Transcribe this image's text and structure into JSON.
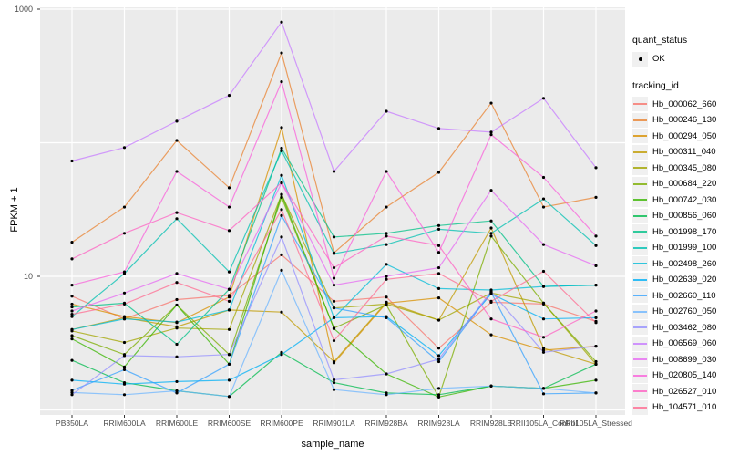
{
  "figure": {
    "background": "#FFFFFF",
    "panel_background": "#EBEBEB",
    "grid_color": "#FFFFFF",
    "tick_color": "#333333",
    "point_color": "#000000"
  },
  "axes": {
    "y_title": "FPKM + 1",
    "x_title": "sample_name",
    "y_tick_labels": [
      "1000",
      "10"
    ]
  },
  "legend": {
    "quant_status_title": "quant_status",
    "ok_label": "OK",
    "tracking_id_title": "tracking_id"
  },
  "chart_data": {
    "type": "line",
    "title": "",
    "xlabel": "sample_name",
    "ylabel": "FPKM + 1",
    "y_scale": "log10",
    "ylim": [
      0.92,
      1030
    ],
    "y_gridline_values": [
      1,
      10,
      100,
      1000
    ],
    "y_labeled_ticks": [
      1000,
      10
    ],
    "grid": "on",
    "legend_position": "right",
    "point_marker": "black dot on every vertex (quant_status = OK)",
    "categories": [
      "PB350LA",
      "RRIM600LA",
      "RRIM600LE",
      "RRIM600SE",
      "RRIM600PE",
      "RRIM901LA",
      "RRIM928BA",
      "RRIM928LA",
      "RRIM928LE",
      "RRII105LA_Control",
      "RRII105LA_Stressed"
    ],
    "series": [
      {
        "name": "Hb_000062_660",
        "color": "#F8766D",
        "values": [
          7.1,
          4.8,
          6.7,
          7.2,
          14.5,
          6.5,
          7.0,
          2.9,
          6.4,
          6.2,
          4.6
        ]
      },
      {
        "name": "Hb_000246_130",
        "color": "#EA8331",
        "values": [
          18,
          33,
          104,
          46,
          470,
          15,
          33,
          60,
          198,
          33,
          39
        ]
      },
      {
        "name": "Hb_000294_050",
        "color": "#D89000",
        "values": [
          6.2,
          5.0,
          4.5,
          7.0,
          130,
          2.25,
          6.3,
          6.9,
          3.65,
          2.8,
          3.0
        ]
      },
      {
        "name": "Hb_000311_040",
        "color": "#C09B00",
        "values": [
          4.0,
          4.9,
          4.2,
          5.6,
          5.4,
          2.3,
          6.4,
          4.7,
          23,
          2.9,
          2.2
        ]
      },
      {
        "name": "Hb_000345_080",
        "color": "#A3A500",
        "values": [
          3.9,
          3.2,
          4.1,
          4.0,
          41,
          5.8,
          6.2,
          4.7,
          7.5,
          6.3,
          2.2
        ]
      },
      {
        "name": "Hb_000684_220",
        "color": "#7CAE00",
        "values": [
          3.6,
          2.6,
          6.1,
          2.6,
          39,
          4.1,
          6.1,
          1.25,
          20,
          6.3,
          2.3
        ]
      },
      {
        "name": "Hb_000742_030",
        "color": "#39B600",
        "values": [
          3.4,
          2.1,
          6.1,
          2.2,
          41,
          4.06,
          1.86,
          1.25,
          1.51,
          1.45,
          1.67
        ]
      },
      {
        "name": "Hb_000856_060",
        "color": "#00BB4E",
        "values": [
          2.35,
          1.6,
          1.39,
          1.26,
          2.7,
          1.6,
          1.34,
          1.3,
          1.51,
          1.45,
          2.2
        ]
      },
      {
        "name": "Hb_001998_170",
        "color": "#00C087",
        "values": [
          5.9,
          6.3,
          3.1,
          8.0,
          91,
          19.7,
          21,
          24,
          26,
          8.4,
          8.6
        ]
      },
      {
        "name": "Hb_001999_100",
        "color": "#00C0B2",
        "values": [
          5.0,
          10.5,
          27,
          10.8,
          87,
          14.8,
          17.3,
          22.5,
          21,
          38,
          17
        ]
      },
      {
        "name": "Hb_002498_260",
        "color": "#00BCD8",
        "values": [
          4.0,
          4.8,
          4.55,
          5.6,
          57,
          4.9,
          12.3,
          8.1,
          7.9,
          8.4,
          8.6
        ]
      },
      {
        "name": "Hb_002639_020",
        "color": "#00B0F6",
        "values": [
          1.67,
          1.56,
          1.63,
          1.67,
          2.6,
          4.9,
          5.0,
          2.55,
          7.4,
          4.8,
          4.9
        ]
      },
      {
        "name": "Hb_002660_110",
        "color": "#35A2FF",
        "values": [
          1.4,
          2.0,
          1.34,
          2.2,
          28.5,
          5.8,
          4.9,
          2.3,
          7.6,
          1.32,
          1.34
        ]
      },
      {
        "name": "Hb_002760_050",
        "color": "#6EB6FF",
        "values": [
          1.35,
          1.3,
          1.39,
          1.26,
          11.1,
          1.42,
          1.3,
          1.45,
          1.51,
          1.45,
          1.34
        ]
      },
      {
        "name": "Hb_003462_080",
        "color": "#9590FF",
        "values": [
          1.3,
          2.55,
          2.5,
          2.6,
          19.7,
          1.68,
          1.86,
          2.4,
          7.7,
          2.7,
          3.0
        ]
      },
      {
        "name": "Hb_006569_060",
        "color": "#C77CFF",
        "values": [
          73,
          92,
          145,
          226,
          800,
          61,
          172,
          128,
          120,
          215,
          65
        ]
      },
      {
        "name": "Hb_008699_030",
        "color": "#E76BF3",
        "values": [
          5.5,
          7.5,
          10.5,
          8.0,
          50,
          8.6,
          10.0,
          11.6,
          44,
          17.3,
          12
        ]
      },
      {
        "name": "Hb_020805_140",
        "color": "#FA62DB",
        "values": [
          8.6,
          10.8,
          61,
          33,
          286,
          9.7,
          61,
          15.1,
          115,
          55,
          20
        ]
      },
      {
        "name": "Hb_026527_010",
        "color": "#FF61C3",
        "values": [
          13.5,
          21,
          30,
          22,
          50.3,
          11.6,
          20,
          17,
          4.8,
          3.5,
          5.5
        ]
      },
      {
        "name": "Hb_104571_010",
        "color": "#FF6C91",
        "values": [
          5.2,
          6.2,
          9.0,
          6.5,
          31.6,
          3.3,
          9.5,
          10.5,
          6.5,
          10.9,
          4.5
        ]
      }
    ]
  }
}
